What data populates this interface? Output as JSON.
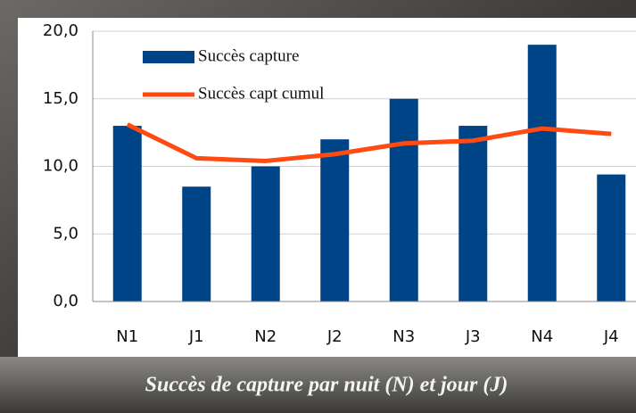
{
  "chart_data": {
    "type": "bar+line",
    "caption": "Succès de capture par nuit (N) et jour (J)",
    "categories": [
      "N1",
      "J1",
      "N2",
      "J2",
      "N3",
      "J3",
      "N4",
      "J4"
    ],
    "series": [
      {
        "name": "Succès capture",
        "type": "bar",
        "color": "#004488",
        "values": [
          13.0,
          8.5,
          10.0,
          12.0,
          15.0,
          13.0,
          19.0,
          9.4
        ]
      },
      {
        "name": "Succès capt cumul",
        "type": "line",
        "color": "#ff4a12",
        "values": [
          13.1,
          10.6,
          10.4,
          10.9,
          11.7,
          11.9,
          12.8,
          12.4
        ]
      }
    ],
    "ylim": [
      0,
      20
    ],
    "yticks": [
      {
        "value": 0,
        "label": "0,0"
      },
      {
        "value": 5,
        "label": "5,0"
      },
      {
        "value": 10,
        "label": "10,0"
      },
      {
        "value": 15,
        "label": "15,0"
      },
      {
        "value": 20,
        "label": "20,0"
      }
    ],
    "grid": true,
    "legend": "upper-left"
  }
}
